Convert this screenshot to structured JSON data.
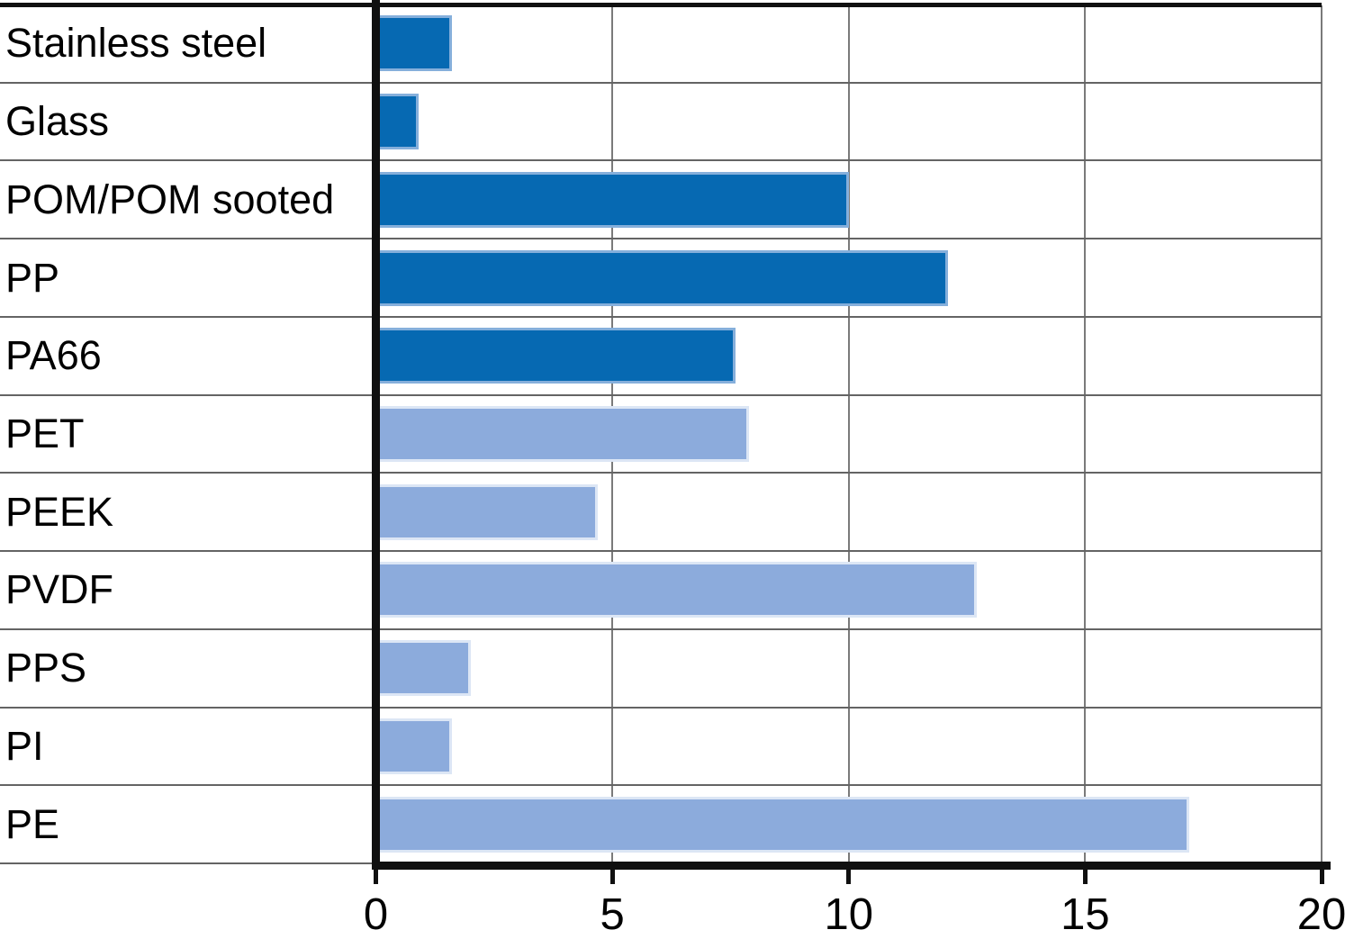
{
  "chart_data": {
    "type": "bar",
    "orientation": "horizontal",
    "categories": [
      "Stainless steel",
      "Glass",
      "POM/POM sooted",
      "PP",
      "PA66",
      "PET",
      "PEEK",
      "PVDF",
      "PPS",
      "PI",
      "PE"
    ],
    "values": [
      1.6,
      0.9,
      10.0,
      12.1,
      7.6,
      7.9,
      4.7,
      12.7,
      2.0,
      1.6,
      17.2
    ],
    "bar_color_keys": [
      "dark",
      "dark",
      "dark",
      "dark",
      "dark",
      "light",
      "light",
      "light",
      "light",
      "light",
      "light"
    ],
    "series": [
      {
        "name": "dark-blue-group",
        "categories": [
          "Stainless steel",
          "Glass",
          "POM/POM sooted",
          "PP",
          "PA66"
        ],
        "values": [
          1.6,
          0.9,
          10.0,
          12.1,
          7.6
        ],
        "color": "#0669B2"
      },
      {
        "name": "light-blue-group",
        "categories": [
          "PET",
          "PEEK",
          "PVDF",
          "PPS",
          "PI",
          "PE"
        ],
        "values": [
          7.9,
          4.7,
          12.7,
          2.0,
          1.6,
          17.2
        ],
        "color": "#8CABDC"
      }
    ],
    "palette": {
      "dark": "#0669B2",
      "light": "#8CABDC",
      "dark_border": "#85AFDB",
      "light_border": "#DCE6F5"
    },
    "xlim": [
      0,
      20
    ],
    "x_ticks": [
      0,
      5,
      10,
      15,
      20
    ],
    "x_tick_labels": [
      "0",
      "5",
      "10",
      "15",
      "20"
    ],
    "grid": true,
    "gridline_color": "#7a7a7a",
    "separator_color": "#646464",
    "axis_color": "#101010",
    "legend": "none"
  }
}
